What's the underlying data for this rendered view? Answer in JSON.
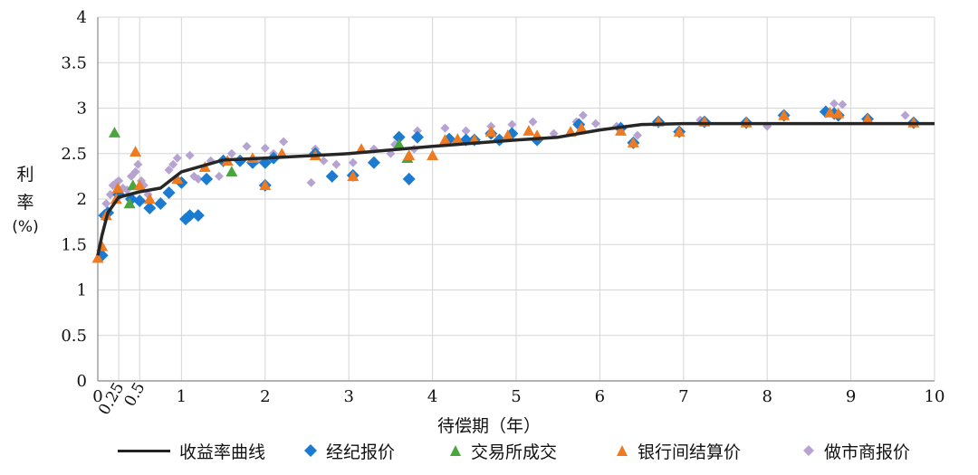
{
  "chart_data": {
    "type": "scatter",
    "title": "",
    "xlabel": "待偿期（年）",
    "ylabel": [
      "利",
      "率",
      "(%)"
    ],
    "xlim": [
      0,
      10
    ],
    "ylim": [
      0,
      4
    ],
    "grid": true,
    "legend_position": "bottom",
    "x_ticks": [
      "0",
      "1",
      "2",
      "3",
      "4",
      "5",
      "6",
      "7",
      "8",
      "9",
      "10"
    ],
    "x_ticks_extra": [
      "0.25",
      "0.5"
    ],
    "y_ticks": [
      "0",
      "0.5",
      "1",
      "1.5",
      "2",
      "2.5",
      "3",
      "3.5",
      "4"
    ],
    "series": [
      {
        "name": "收益率曲线",
        "kind": "line",
        "color": "#262626",
        "points": [
          [
            0,
            1.38
          ],
          [
            0.05,
            1.6
          ],
          [
            0.12,
            1.85
          ],
          [
            0.25,
            2.02
          ],
          [
            0.5,
            2.08
          ],
          [
            0.75,
            2.12
          ],
          [
            1,
            2.3
          ],
          [
            1.5,
            2.43
          ],
          [
            2,
            2.45
          ],
          [
            3,
            2.5
          ],
          [
            4,
            2.58
          ],
          [
            5,
            2.65
          ],
          [
            5.5,
            2.68
          ],
          [
            6,
            2.76
          ],
          [
            6.5,
            2.82
          ],
          [
            7,
            2.83
          ],
          [
            8,
            2.83
          ],
          [
            9,
            2.83
          ],
          [
            10,
            2.83
          ]
        ]
      },
      {
        "name": "经纪报价",
        "kind": "diamond",
        "color": "#1a7bd1",
        "points": [
          [
            0.05,
            1.38
          ],
          [
            0.08,
            1.82
          ],
          [
            0.12,
            1.85
          ],
          [
            0.25,
            2.05
          ],
          [
            0.4,
            2.0
          ],
          [
            0.5,
            1.98
          ],
          [
            0.62,
            1.9
          ],
          [
            0.75,
            1.95
          ],
          [
            0.85,
            2.07
          ],
          [
            1.0,
            2.18
          ],
          [
            1.05,
            1.78
          ],
          [
            1.1,
            1.82
          ],
          [
            1.2,
            1.82
          ],
          [
            1.3,
            2.22
          ],
          [
            1.5,
            2.42
          ],
          [
            1.7,
            2.42
          ],
          [
            1.85,
            2.4
          ],
          [
            2.0,
            2.15
          ],
          [
            2.0,
            2.4
          ],
          [
            2.1,
            2.45
          ],
          [
            2.6,
            2.5
          ],
          [
            2.8,
            2.25
          ],
          [
            3.05,
            2.26
          ],
          [
            3.3,
            2.4
          ],
          [
            3.6,
            2.68
          ],
          [
            3.72,
            2.22
          ],
          [
            3.82,
            2.68
          ],
          [
            4.2,
            2.66
          ],
          [
            4.4,
            2.65
          ],
          [
            4.5,
            2.65
          ],
          [
            4.7,
            2.72
          ],
          [
            4.8,
            2.65
          ],
          [
            4.95,
            2.72
          ],
          [
            5.25,
            2.65
          ],
          [
            5.75,
            2.82
          ],
          [
            6.25,
            2.78
          ],
          [
            6.4,
            2.62
          ],
          [
            6.7,
            2.85
          ],
          [
            6.95,
            2.74
          ],
          [
            7.25,
            2.85
          ],
          [
            7.75,
            2.84
          ],
          [
            8.2,
            2.92
          ],
          [
            8.7,
            2.96
          ],
          [
            8.8,
            2.94
          ],
          [
            8.85,
            2.92
          ],
          [
            9.2,
            2.88
          ],
          [
            9.75,
            2.84
          ]
        ]
      },
      {
        "name": "交易所成交",
        "kind": "triangle",
        "color": "#4aa63c",
        "points": [
          [
            0.2,
            2.73
          ],
          [
            0.38,
            1.95
          ],
          [
            0.42,
            2.15
          ],
          [
            1.6,
            2.3
          ],
          [
            3.6,
            2.6
          ],
          [
            3.7,
            2.45
          ]
        ]
      },
      {
        "name": "银行间结算价",
        "kind": "triangle",
        "color": "#ee7b22",
        "points": [
          [
            0.0,
            1.35
          ],
          [
            0.05,
            1.48
          ],
          [
            0.1,
            1.82
          ],
          [
            0.22,
            2.0
          ],
          [
            0.24,
            2.12
          ],
          [
            0.45,
            2.52
          ],
          [
            0.5,
            2.15
          ],
          [
            0.62,
            2.0
          ],
          [
            0.95,
            2.22
          ],
          [
            1.28,
            2.35
          ],
          [
            1.55,
            2.42
          ],
          [
            1.85,
            2.45
          ],
          [
            2.0,
            2.15
          ],
          [
            2.2,
            2.5
          ],
          [
            2.6,
            2.48
          ],
          [
            3.05,
            2.25
          ],
          [
            3.15,
            2.55
          ],
          [
            3.72,
            2.48
          ],
          [
            4.0,
            2.48
          ],
          [
            4.15,
            2.65
          ],
          [
            4.3,
            2.66
          ],
          [
            4.5,
            2.65
          ],
          [
            4.7,
            2.74
          ],
          [
            4.9,
            2.7
          ],
          [
            5.15,
            2.75
          ],
          [
            5.25,
            2.7
          ],
          [
            5.65,
            2.74
          ],
          [
            5.78,
            2.78
          ],
          [
            6.25,
            2.75
          ],
          [
            6.4,
            2.62
          ],
          [
            6.7,
            2.85
          ],
          [
            6.95,
            2.74
          ],
          [
            7.25,
            2.85
          ],
          [
            7.75,
            2.84
          ],
          [
            8.2,
            2.92
          ],
          [
            8.75,
            2.95
          ],
          [
            8.85,
            2.94
          ],
          [
            9.2,
            2.88
          ],
          [
            9.75,
            2.84
          ]
        ]
      },
      {
        "name": "做市商报价",
        "kind": "diamond-small",
        "color": "#b7a3d1",
        "points": [
          [
            0.1,
            1.95
          ],
          [
            0.15,
            2.05
          ],
          [
            0.18,
            2.15
          ],
          [
            0.22,
            2.18
          ],
          [
            0.25,
            2.2
          ],
          [
            0.3,
            2.12
          ],
          [
            0.35,
            2.1
          ],
          [
            0.4,
            2.25
          ],
          [
            0.45,
            2.3
          ],
          [
            0.48,
            2.38
          ],
          [
            0.52,
            2.2
          ],
          [
            0.55,
            2.15
          ],
          [
            0.6,
            2.05
          ],
          [
            0.85,
            2.32
          ],
          [
            0.9,
            2.38
          ],
          [
            0.95,
            2.45
          ],
          [
            1.1,
            2.48
          ],
          [
            1.15,
            2.25
          ],
          [
            1.2,
            2.22
          ],
          [
            1.35,
            2.42
          ],
          [
            1.45,
            2.25
          ],
          [
            1.6,
            2.5
          ],
          [
            1.78,
            2.58
          ],
          [
            1.9,
            2.42
          ],
          [
            2.0,
            2.56
          ],
          [
            2.1,
            2.5
          ],
          [
            2.22,
            2.63
          ],
          [
            2.55,
            2.18
          ],
          [
            2.6,
            2.55
          ],
          [
            2.7,
            2.42
          ],
          [
            2.85,
            2.38
          ],
          [
            3.05,
            2.4
          ],
          [
            3.3,
            2.55
          ],
          [
            3.5,
            2.5
          ],
          [
            3.55,
            2.6
          ],
          [
            3.78,
            2.55
          ],
          [
            3.82,
            2.75
          ],
          [
            4.15,
            2.78
          ],
          [
            4.4,
            2.75
          ],
          [
            4.7,
            2.8
          ],
          [
            4.95,
            2.82
          ],
          [
            5.2,
            2.85
          ],
          [
            5.45,
            2.72
          ],
          [
            5.72,
            2.85
          ],
          [
            5.8,
            2.92
          ],
          [
            5.95,
            2.83
          ],
          [
            6.2,
            2.8
          ],
          [
            6.45,
            2.7
          ],
          [
            6.7,
            2.87
          ],
          [
            7.2,
            2.87
          ],
          [
            8.0,
            2.8
          ],
          [
            8.8,
            3.05
          ],
          [
            8.9,
            3.04
          ],
          [
            9.65,
            2.92
          ]
        ]
      }
    ]
  }
}
